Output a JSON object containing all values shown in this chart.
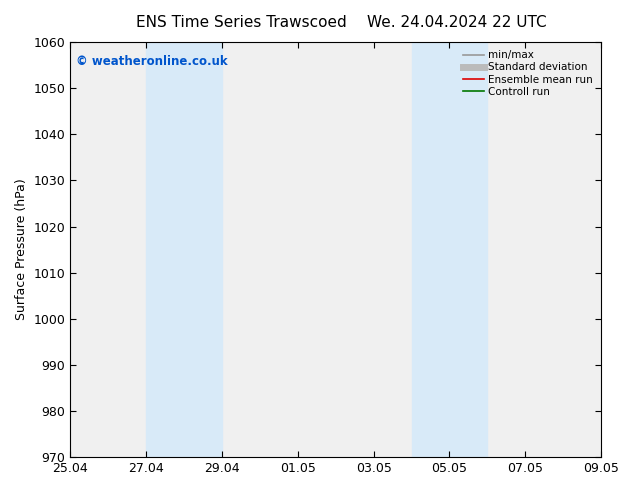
{
  "title_left": "ENS Time Series Trawscoed",
  "title_right": "We. 24.04.2024 22 UTC",
  "ylabel": "Surface Pressure (hPa)",
  "ylim": [
    970,
    1060
  ],
  "yticks": [
    970,
    980,
    990,
    1000,
    1010,
    1020,
    1030,
    1040,
    1050,
    1060
  ],
  "xtick_labels": [
    "25.04",
    "27.04",
    "29.04",
    "01.05",
    "03.05",
    "05.05",
    "07.05",
    "09.05"
  ],
  "xtick_positions": [
    0,
    2,
    4,
    6,
    8,
    10,
    12,
    14
  ],
  "xlim": [
    0,
    14
  ],
  "shaded_bands": [
    {
      "x_start": 2,
      "x_end": 4
    },
    {
      "x_start": 9,
      "x_end": 11
    }
  ],
  "shaded_color": "#d8eaf8",
  "watermark_text": "© weatheronline.co.uk",
  "watermark_color": "#0055cc",
  "legend_entries": [
    {
      "label": "min/max",
      "color": "#999999",
      "lw": 1.2
    },
    {
      "label": "Standard deviation",
      "color": "#bbbbbb",
      "lw": 5
    },
    {
      "label": "Ensemble mean run",
      "color": "#dd0000",
      "lw": 1.2
    },
    {
      "label": "Controll run",
      "color": "#007700",
      "lw": 1.2
    }
  ],
  "background_color": "#ffffff",
  "plot_bg_color": "#f0f0f0",
  "tick_label_fontsize": 9,
  "axis_label_fontsize": 9,
  "title_fontsize": 11
}
